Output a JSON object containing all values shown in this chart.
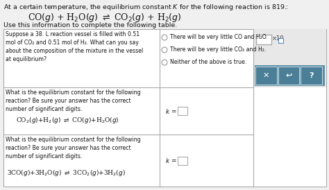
{
  "title": "At a certain temperature, the equilibrium constant $K$ for the following reaction is 819.:",
  "main_reaction_left": "CO$(g)$ + H",
  "subtitle": "Use this information to complete the following table.",
  "row1_left": "Suppose a 38. L reaction vessel is filled with 0.51\nmol of CO₂ and 0.51 mol of H₂. What can you say\nabout the composition of the mixture in the vessel\nat equilibrium?",
  "row1_opt1": "There will be very little CO and H₂O.",
  "row1_opt2": "There will be very little CO₂ and H₂.",
  "row1_opt3": "Neither of the above is true.",
  "row2_intro": "What is the equilibrium constant for the following\nreaction? Be sure your answer has the correct\nnumber of significant digits.",
  "row3_intro": "What is the equilibrium constant for the following\nreaction? Be sure your answer has the correct\nnumber of significant digits.",
  "bg_color": "#f0f0f0",
  "table_bg": "#ffffff",
  "right_top_bg": "#e8e8e8",
  "right_btn_bg": "#5b8fa8",
  "btn_bg": "#4a7f97",
  "title_fs": 6.8,
  "cell_fs": 5.6,
  "reaction_fs": 6.5,
  "k_fs": 6.5
}
